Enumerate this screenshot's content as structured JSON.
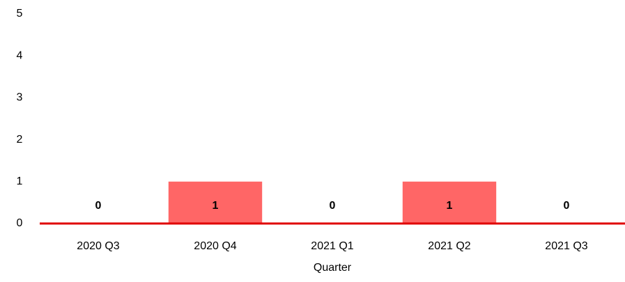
{
  "chart_data": {
    "type": "bar",
    "x_label": "Quarter",
    "categories": [
      "2020 Q3",
      "2020 Q4",
      "2021 Q1",
      "2021 Q2",
      "2021 Q3"
    ],
    "values": [
      0,
      1,
      0,
      1,
      0
    ],
    "color": "#ff6666",
    "baseline_color": "#e00000",
    "ylim": [
      0,
      5
    ],
    "yticks": [
      0,
      1,
      2,
      3,
      4,
      5
    ],
    "grid": false
  }
}
